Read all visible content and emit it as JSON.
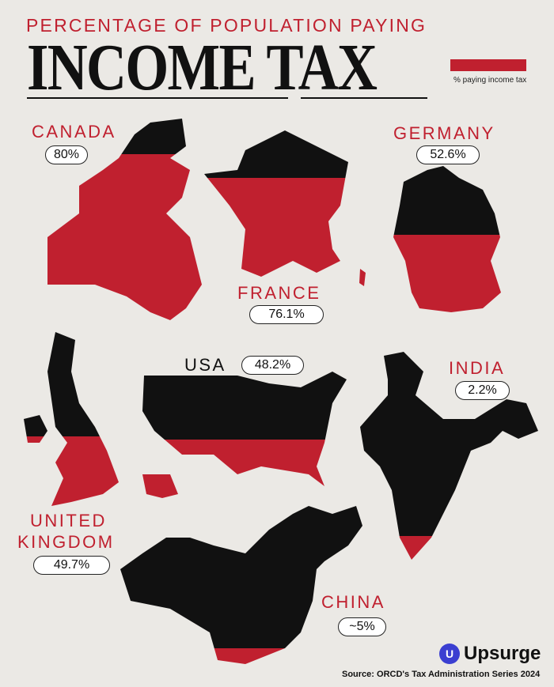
{
  "header": {
    "subtitle": "PERCENTAGE OF POPULATION PAYING",
    "title": "INCOME TAX",
    "legend_label": "% paying income tax"
  },
  "colors": {
    "background": "#ebe9e5",
    "taxpayer_fill": "#c0202f",
    "non_taxpayer_fill": "#111111",
    "brand": "#3b3fd1"
  },
  "countries": [
    {
      "id": "canada",
      "label": "CANADA",
      "value_label": "80%",
      "value": 80
    },
    {
      "id": "france",
      "label": "FRANCE",
      "value_label": "76.1%",
      "value": 76.1
    },
    {
      "id": "germany",
      "label": "GERMANY",
      "value_label": "52.6%",
      "value": 52.6
    },
    {
      "id": "uk",
      "label": "UNITED",
      "label2": "KINGDOM",
      "value_label": "49.7%",
      "value": 49.7
    },
    {
      "id": "usa",
      "label": "USA",
      "value_label": "48.2%",
      "value": 48.2
    },
    {
      "id": "india",
      "label": "INDIA",
      "value_label": "2.2%",
      "value": 2.2
    },
    {
      "id": "china",
      "label": "CHINA",
      "value_label": "~5%",
      "value": 5
    }
  ],
  "footer": {
    "brand": "Upsurge",
    "brand_mark": "U",
    "source": "Source: ORCD's Tax Administration Series 2024"
  }
}
